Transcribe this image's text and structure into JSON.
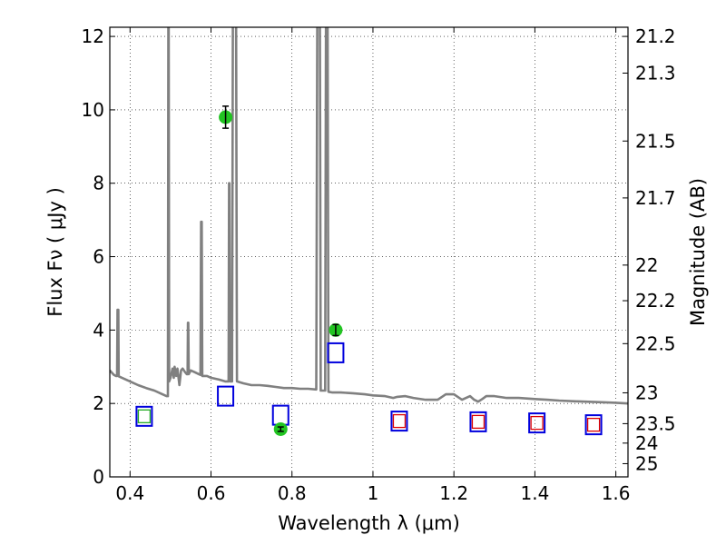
{
  "chart_data": {
    "type": "scatter",
    "xlabel": "Wavelength  λ (μm)",
    "ylabel": "Flux  Fν  ( μJy )",
    "y2label": "Magnitude (AB)",
    "xlim": [
      0.35,
      1.63
    ],
    "ylim": [
      0,
      12.25
    ],
    "grid": true,
    "x_ticks": [
      0.4,
      0.6,
      0.8,
      1.0,
      1.2,
      1.4,
      1.6
    ],
    "x_tick_labels": [
      "0.4",
      "0.6",
      "0.8",
      "1",
      "1.2",
      "1.4",
      "1.6"
    ],
    "y_ticks": [
      0,
      2,
      4,
      6,
      8,
      10,
      12
    ],
    "y_tick_labels": [
      "0",
      "2",
      "4",
      "6",
      "8",
      "10",
      "12"
    ],
    "y2_ticks": [
      {
        "label": "21.2",
        "flux": 12.0
      },
      {
        "label": "21.3",
        "flux": 11.0
      },
      {
        "label": "21.5",
        "flux": 9.15
      },
      {
        "label": "21.7",
        "flux": 7.6
      },
      {
        "label": "22",
        "flux": 5.77
      },
      {
        "label": "22.2",
        "flux": 4.8
      },
      {
        "label": "22.5",
        "flux": 3.63
      },
      {
        "label": "23",
        "flux": 2.29
      },
      {
        "label": "23.5",
        "flux": 1.45
      },
      {
        "label": "24",
        "flux": 0.92
      },
      {
        "label": "25",
        "flux": 0.36
      }
    ],
    "series": [
      {
        "name": "model spectrum",
        "kind": "line",
        "color": "#808080",
        "points": [
          [
            0.35,
            2.9
          ],
          [
            0.36,
            2.78
          ],
          [
            0.365,
            2.75
          ],
          [
            0.368,
            2.75
          ],
          [
            0.369,
            4.55
          ],
          [
            0.371,
            4.55
          ],
          [
            0.372,
            2.74
          ],
          [
            0.38,
            2.7
          ],
          [
            0.4,
            2.6
          ],
          [
            0.42,
            2.5
          ],
          [
            0.44,
            2.42
          ],
          [
            0.46,
            2.35
          ],
          [
            0.48,
            2.25
          ],
          [
            0.49,
            2.2
          ],
          [
            0.4935,
            2.2
          ],
          [
            0.4945,
            12.3
          ],
          [
            0.4955,
            12.3
          ],
          [
            0.4965,
            2.6
          ],
          [
            0.5,
            2.7
          ],
          [
            0.505,
            2.95
          ],
          [
            0.508,
            2.7
          ],
          [
            0.51,
            3.0
          ],
          [
            0.514,
            2.75
          ],
          [
            0.517,
            2.95
          ],
          [
            0.522,
            2.5
          ],
          [
            0.526,
            2.9
          ],
          [
            0.53,
            2.95
          ],
          [
            0.536,
            2.85
          ],
          [
            0.54,
            2.8
          ],
          [
            0.542,
            2.8
          ],
          [
            0.543,
            4.2
          ],
          [
            0.544,
            4.2
          ],
          [
            0.545,
            2.8
          ],
          [
            0.55,
            2.9
          ],
          [
            0.56,
            2.85
          ],
          [
            0.57,
            2.8
          ],
          [
            0.574,
            2.78
          ],
          [
            0.5755,
            6.95
          ],
          [
            0.577,
            6.95
          ],
          [
            0.5785,
            2.75
          ],
          [
            0.59,
            2.75
          ],
          [
            0.6,
            2.7
          ],
          [
            0.62,
            2.65
          ],
          [
            0.635,
            2.6
          ],
          [
            0.6435,
            2.6
          ],
          [
            0.6445,
            8.0
          ],
          [
            0.6455,
            8.0
          ],
          [
            0.6475,
            2.6
          ],
          [
            0.652,
            2.6
          ],
          [
            0.654,
            12.3
          ],
          [
            0.662,
            12.3
          ],
          [
            0.664,
            2.6
          ],
          [
            0.68,
            2.55
          ],
          [
            0.7,
            2.5
          ],
          [
            0.72,
            2.5
          ],
          [
            0.74,
            2.48
          ],
          [
            0.76,
            2.45
          ],
          [
            0.78,
            2.42
          ],
          [
            0.8,
            2.42
          ],
          [
            0.82,
            2.4
          ],
          [
            0.84,
            2.4
          ],
          [
            0.86,
            2.38
          ],
          [
            0.8625,
            12.3
          ],
          [
            0.869,
            12.3
          ],
          [
            0.871,
            2.35
          ],
          [
            0.882,
            2.35
          ],
          [
            0.884,
            12.3
          ],
          [
            0.888,
            12.3
          ],
          [
            0.89,
            2.32
          ],
          [
            0.9,
            2.3
          ],
          [
            0.92,
            2.3
          ],
          [
            0.95,
            2.28
          ],
          [
            0.98,
            2.25
          ],
          [
            1.0,
            2.22
          ],
          [
            1.03,
            2.2
          ],
          [
            1.05,
            2.15
          ],
          [
            1.06,
            2.18
          ],
          [
            1.08,
            2.2
          ],
          [
            1.1,
            2.15
          ],
          [
            1.13,
            2.1
          ],
          [
            1.16,
            2.1
          ],
          [
            1.18,
            2.25
          ],
          [
            1.2,
            2.25
          ],
          [
            1.22,
            2.1
          ],
          [
            1.24,
            2.2
          ],
          [
            1.25,
            2.1
          ],
          [
            1.26,
            2.05
          ],
          [
            1.27,
            2.12
          ],
          [
            1.28,
            2.2
          ],
          [
            1.3,
            2.2
          ],
          [
            1.33,
            2.15
          ],
          [
            1.36,
            2.15
          ],
          [
            1.4,
            2.12
          ],
          [
            1.43,
            2.1
          ],
          [
            1.46,
            2.08
          ],
          [
            1.5,
            2.06
          ],
          [
            1.55,
            2.04
          ],
          [
            1.6,
            2.02
          ],
          [
            1.63,
            2.0
          ]
        ]
      },
      {
        "name": "observed photometry",
        "kind": "point",
        "color": "#22c422",
        "points": [
          {
            "x": 0.636,
            "y": 9.8,
            "err": 0.3
          },
          {
            "x": 0.772,
            "y": 1.3,
            "err": 0.06
          },
          {
            "x": 0.908,
            "y": 4.0,
            "err": 0.15
          }
        ]
      },
      {
        "name": "model photometry",
        "kind": "square",
        "color": "#0000dd",
        "points": [
          {
            "x": 0.435,
            "y": 1.65
          },
          {
            "x": 0.636,
            "y": 2.2
          },
          {
            "x": 0.772,
            "y": 1.68
          },
          {
            "x": 0.908,
            "y": 3.38
          },
          {
            "x": 1.065,
            "y": 1.52
          },
          {
            "x": 1.26,
            "y": 1.5
          },
          {
            "x": 1.405,
            "y": 1.47
          },
          {
            "x": 1.545,
            "y": 1.42
          }
        ]
      },
      {
        "name": "inner green square",
        "kind": "square-small",
        "color": "#22aa22",
        "points": [
          {
            "x": 0.435,
            "y": 1.65
          }
        ]
      },
      {
        "name": "inner red squares",
        "kind": "square-small",
        "color": "#dd0000",
        "points": [
          {
            "x": 1.065,
            "y": 1.52
          },
          {
            "x": 1.26,
            "y": 1.5
          },
          {
            "x": 1.405,
            "y": 1.47
          },
          {
            "x": 1.545,
            "y": 1.42
          }
        ]
      }
    ]
  }
}
